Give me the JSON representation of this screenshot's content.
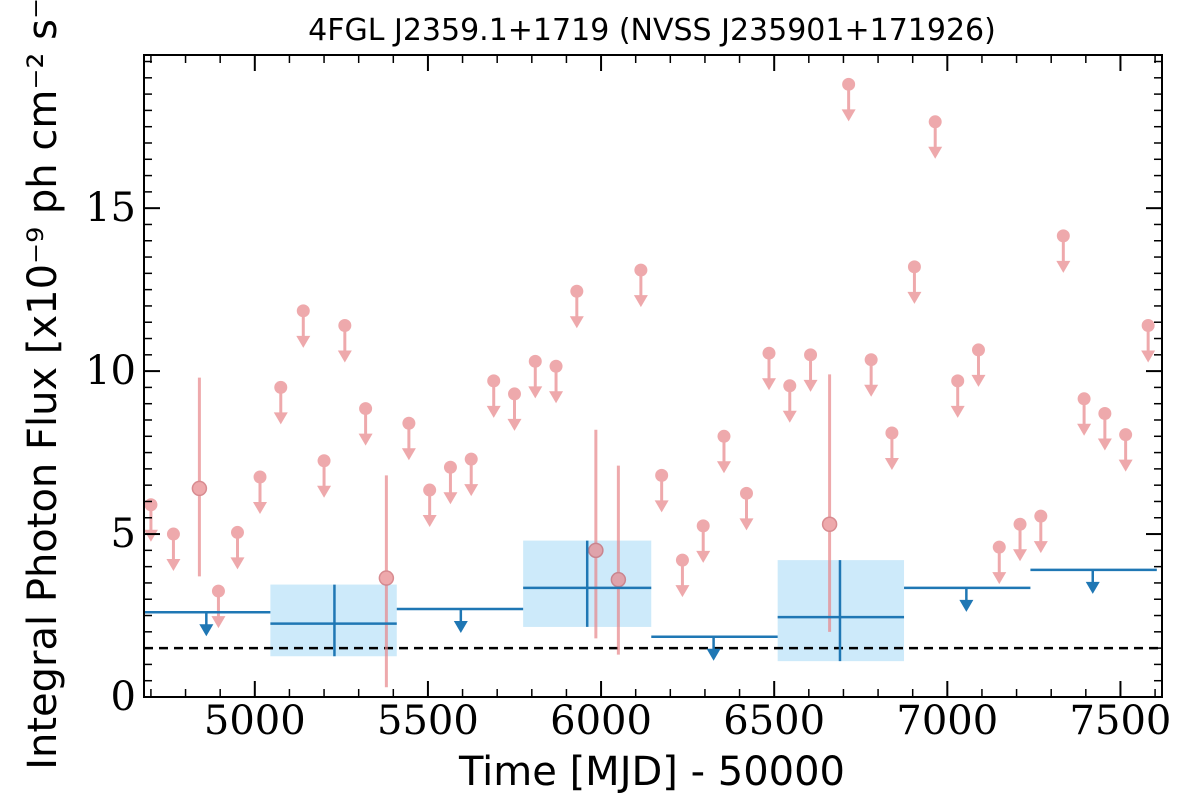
{
  "chart_data": {
    "type": "scatter",
    "title": "4FGL J2359.1+1719 (NVSS J235901+171926)",
    "xlabel": "Time [MJD] - 50000",
    "ylabel": "Integral Photon Flux [x10⁻⁹ ph cm⁻² s⁻¹]",
    "xlim": [
      4680,
      7620
    ],
    "ylim": [
      0,
      19.7
    ],
    "x_ticks": [
      5000,
      5500,
      6000,
      6500,
      7000,
      7500
    ],
    "y_ticks": [
      0,
      5,
      10,
      15
    ],
    "grid": false,
    "threshold": 1.5,
    "colors": {
      "short_bins": "#e8868a",
      "long_bins": "#1f77b4",
      "long_err_fill": "#cdeafa",
      "threshold": "#000000"
    },
    "short_detections": [
      {
        "x": 4840,
        "y": 6.4,
        "ylo": 3.7,
        "yhi": 9.8
      },
      {
        "x": 5380,
        "y": 3.65,
        "ylo": 0.3,
        "yhi": 6.8
      },
      {
        "x": 5985,
        "y": 4.5,
        "ylo": 1.8,
        "yhi": 8.2
      },
      {
        "x": 6050,
        "y": 3.6,
        "ylo": 1.3,
        "yhi": 7.1
      },
      {
        "x": 6660,
        "y": 5.3,
        "ylo": 2.0,
        "yhi": 9.9
      }
    ],
    "short_upper_limits": [
      {
        "x": 4700,
        "y": 5.9
      },
      {
        "x": 4765,
        "y": 5.0
      },
      {
        "x": 4895,
        "y": 3.25
      },
      {
        "x": 4950,
        "y": 5.05
      },
      {
        "x": 5015,
        "y": 6.75
      },
      {
        "x": 5075,
        "y": 9.5
      },
      {
        "x": 5140,
        "y": 11.85
      },
      {
        "x": 5200,
        "y": 7.25
      },
      {
        "x": 5260,
        "y": 11.4
      },
      {
        "x": 5320,
        "y": 8.85
      },
      {
        "x": 5445,
        "y": 8.4
      },
      {
        "x": 5505,
        "y": 6.35
      },
      {
        "x": 5565,
        "y": 7.05
      },
      {
        "x": 5625,
        "y": 7.3
      },
      {
        "x": 5690,
        "y": 9.7
      },
      {
        "x": 5750,
        "y": 9.3
      },
      {
        "x": 5810,
        "y": 10.3
      },
      {
        "x": 5870,
        "y": 10.15
      },
      {
        "x": 5930,
        "y": 12.45
      },
      {
        "x": 6115,
        "y": 13.1
      },
      {
        "x": 6175,
        "y": 6.8
      },
      {
        "x": 6235,
        "y": 4.2
      },
      {
        "x": 6295,
        "y": 5.25
      },
      {
        "x": 6355,
        "y": 8.0
      },
      {
        "x": 6420,
        "y": 6.25
      },
      {
        "x": 6485,
        "y": 10.55
      },
      {
        "x": 6545,
        "y": 9.55
      },
      {
        "x": 6605,
        "y": 10.5
      },
      {
        "x": 6715,
        "y": 18.8
      },
      {
        "x": 6780,
        "y": 10.35
      },
      {
        "x": 6840,
        "y": 8.1
      },
      {
        "x": 6905,
        "y": 13.2
      },
      {
        "x": 6965,
        "y": 17.65
      },
      {
        "x": 7030,
        "y": 9.7
      },
      {
        "x": 7090,
        "y": 10.65
      },
      {
        "x": 7150,
        "y": 4.6
      },
      {
        "x": 7210,
        "y": 5.3
      },
      {
        "x": 7270,
        "y": 5.55
      },
      {
        "x": 7335,
        "y": 14.15
      },
      {
        "x": 7395,
        "y": 9.15
      },
      {
        "x": 7455,
        "y": 8.7
      },
      {
        "x": 7515,
        "y": 8.05
      },
      {
        "x": 7580,
        "y": 11.4
      }
    ],
    "long_detections": [
      {
        "x": 5230,
        "x0": 5045,
        "x1": 5410,
        "y": 2.25,
        "ylo": 1.25,
        "yhi": 3.45
      },
      {
        "x": 5960,
        "x0": 5775,
        "x1": 6145,
        "y": 3.35,
        "ylo": 2.15,
        "yhi": 4.8
      },
      {
        "x": 6690,
        "x0": 6510,
        "x1": 6875,
        "y": 2.45,
        "ylo": 1.1,
        "yhi": 4.2
      }
    ],
    "long_upper_limits": [
      {
        "x": 4860,
        "x0": 4680,
        "x1": 5045,
        "y": 2.6
      },
      {
        "x": 5595,
        "x0": 5410,
        "x1": 5775,
        "y": 2.7
      },
      {
        "x": 6325,
        "x0": 6145,
        "x1": 6510,
        "y": 1.85
      },
      {
        "x": 7055,
        "x0": 6875,
        "x1": 7240,
        "y": 3.35
      },
      {
        "x": 7420,
        "x0": 7240,
        "x1": 7605,
        "y": 3.9
      }
    ]
  }
}
